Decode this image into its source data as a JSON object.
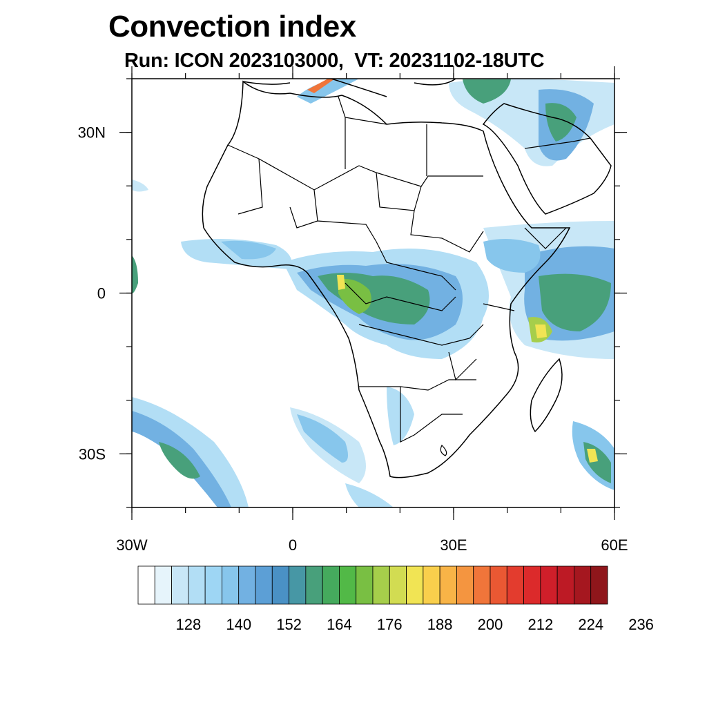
{
  "title": "Convection index",
  "subtitle": "Run: ICON 2023103000,  VT: 20231102-18UTC",
  "map": {
    "lon_range": [
      -30,
      60
    ],
    "lat_range": [
      -40,
      40
    ],
    "lat_ticks": [
      {
        "value": 30,
        "label": "30N"
      },
      {
        "value": 0,
        "label": "0"
      },
      {
        "value": -30,
        "label": "30S"
      }
    ],
    "lon_ticks": [
      {
        "value": -30,
        "label": "30W"
      },
      {
        "value": 0,
        "label": "0"
      },
      {
        "value": 30,
        "label": "30E"
      },
      {
        "value": 60,
        "label": "60E"
      }
    ]
  },
  "colorbar": {
    "colors": [
      "#ffffff",
      "#e6f4fb",
      "#c8e7f7",
      "#b2def5",
      "#9ed6f4",
      "#87c6ec",
      "#72b1e2",
      "#5c9fd6",
      "#4a91c5",
      "#4797a5",
      "#48a07b",
      "#45aa5d",
      "#52b947",
      "#79bf43",
      "#a6ce4b",
      "#d2dc52",
      "#f1e454",
      "#f9cf4c",
      "#f8b447",
      "#f49540",
      "#f0753a",
      "#ea5833",
      "#e33c2e",
      "#dc2a2b",
      "#cf1f2a",
      "#bd1a25",
      "#a5171f",
      "#8f161b"
    ],
    "labels": [
      "128",
      "140",
      "152",
      "164",
      "176",
      "188",
      "200",
      "212",
      "224",
      "236"
    ]
  }
}
